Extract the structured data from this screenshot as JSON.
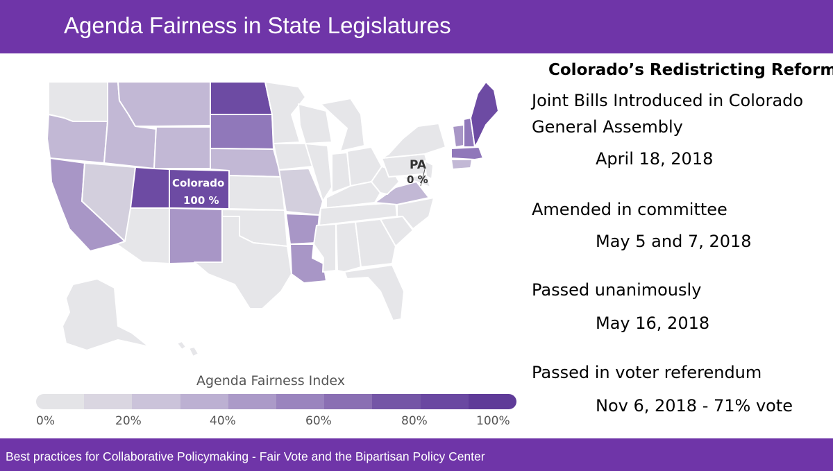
{
  "header": {
    "title": "Agenda Fairness in State Legislatures"
  },
  "map": {
    "callouts": [
      {
        "name": "Colorado",
        "value": "100 %"
      },
      {
        "name": "PA",
        "value": "0 %"
      }
    ],
    "colors": {
      "lightest": "#e6e6e9",
      "light": "#d3cfdd",
      "medium_light": "#c2b8d5",
      "medium": "#a896c6",
      "medium_dark": "#9078ba",
      "dark": "#6d4ba3",
      "border": "#ffffff"
    }
  },
  "legend": {
    "title": "Agenda Fairness Index",
    "ticks": [
      "0%",
      "20%",
      "40%",
      "60%",
      "80%",
      "100%"
    ],
    "colors": [
      "#e4e4e7",
      "#dad6e1",
      "#cbc3da",
      "#bcb0d2",
      "#ab9ac8",
      "#9a84be",
      "#8a6fb3",
      "#7456a6",
      "#6a48a1",
      "#5f3b98"
    ]
  },
  "panel": {
    "title": "Colorado’s Redistricting Reform",
    "events": [
      {
        "label_lines": [
          "Joint Bills Introduced in Colorado",
          "General Assembly"
        ],
        "date": "April 18, 2018"
      },
      {
        "label_lines": [
          "Amended in committee"
        ],
        "date": "May 5 and 7, 2018"
      },
      {
        "label_lines": [
          "Passed unanimously"
        ],
        "date": "May 16, 2018"
      },
      {
        "label_lines": [
          "Passed in voter referendum"
        ],
        "date": "Nov 6, 2018 - 71% vote"
      }
    ]
  },
  "footer": {
    "text": "Best practices for Collaborative Policymaking - Fair Vote and the Bipartisan Policy Center"
  }
}
